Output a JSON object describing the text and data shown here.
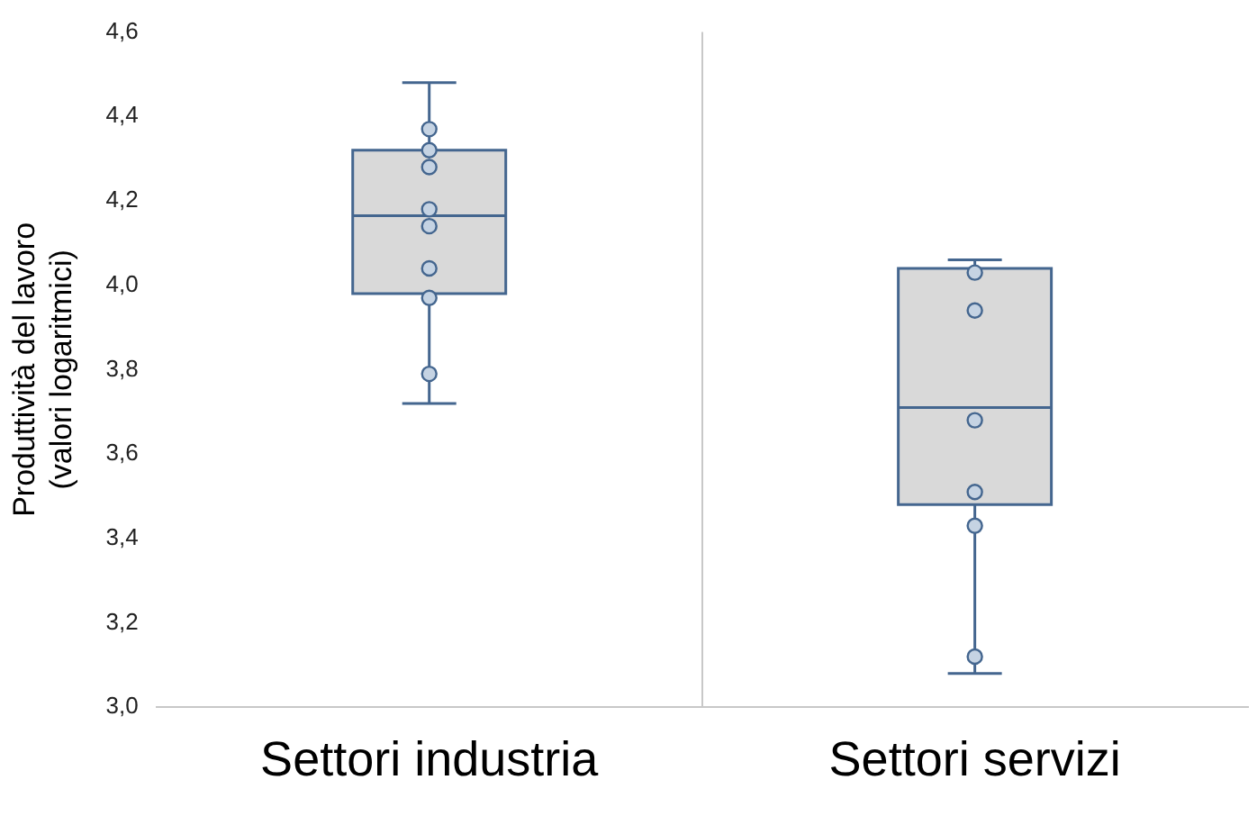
{
  "chart_data": {
    "type": "box",
    "ylabel": "Produttività del lavoro\n(valori logaritmici)",
    "categories": [
      "Settori industria",
      "Settori servizi"
    ],
    "boxes": [
      {
        "low": 3.72,
        "q1": 3.98,
        "median": 4.165,
        "q3": 4.32,
        "high": 4.48
      },
      {
        "low": 3.08,
        "q1": 3.48,
        "median": 3.71,
        "q3": 4.04,
        "high": 4.06
      }
    ],
    "color": "#d9d9d9",
    "series": [
      {
        "type": "scatter",
        "color": "#c5d3e3",
        "x": [
          "Settori industria",
          "Settori industria",
          "Settori industria",
          "Settori industria",
          "Settori industria",
          "Settori industria",
          "Settori industria",
          "Settori industria",
          "Settori servizi",
          "Settori servizi",
          "Settori servizi",
          "Settori servizi",
          "Settori servizi",
          "Settori servizi"
        ],
        "values": [
          4.37,
          4.32,
          4.28,
          4.18,
          4.14,
          4.04,
          3.97,
          3.79,
          4.03,
          3.94,
          3.68,
          3.51,
          3.43,
          3.12
        ]
      }
    ],
    "marker": "circle",
    "ylim": [
      3.0,
      4.6
    ],
    "yticks": [
      {
        "value": 3.0,
        "label": "3,0"
      },
      {
        "value": 3.2,
        "label": "3,2"
      },
      {
        "value": 3.4,
        "label": "3,4"
      },
      {
        "value": 3.6,
        "label": "3,6"
      },
      {
        "value": 3.8,
        "label": "3,8"
      },
      {
        "value": 4.0,
        "label": "4,0"
      },
      {
        "value": 4.2,
        "label": "4,2"
      },
      {
        "value": 4.4,
        "label": "4,4"
      },
      {
        "value": 4.6,
        "label": "4,6"
      }
    ],
    "grid": "x"
  }
}
